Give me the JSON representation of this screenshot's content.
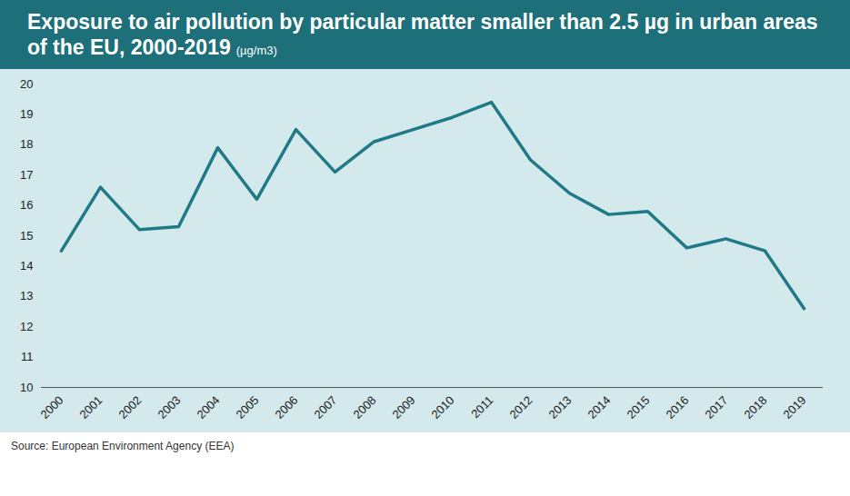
{
  "chart_data": {
    "type": "line",
    "title": "Exposure to air pollution by particular matter smaller than 2.5 µg in urban areas of the EU, 2000-2019",
    "subtitle": "(µg/m3)",
    "source": "Source: European Environment Agency (EEA)",
    "categories": [
      "2000",
      "2001",
      "2002",
      "2003",
      "2004",
      "2005",
      "2006",
      "2007",
      "2008",
      "2009",
      "2010",
      "2011",
      "2012",
      "2013",
      "2014",
      "2015",
      "2016",
      "2017",
      "2018",
      "2019"
    ],
    "values": [
      14.5,
      16.6,
      15.2,
      15.3,
      17.9,
      16.2,
      18.5,
      17.1,
      18.1,
      18.5,
      18.9,
      19.4,
      17.5,
      16.4,
      15.7,
      15.8,
      14.6,
      14.9,
      14.5,
      12.6
    ],
    "color": "#1f7a85",
    "ylim": [
      10,
      20
    ],
    "yticks": [
      10,
      11,
      12,
      13,
      14,
      15,
      16,
      17,
      18,
      19,
      20
    ],
    "grid": false
  }
}
